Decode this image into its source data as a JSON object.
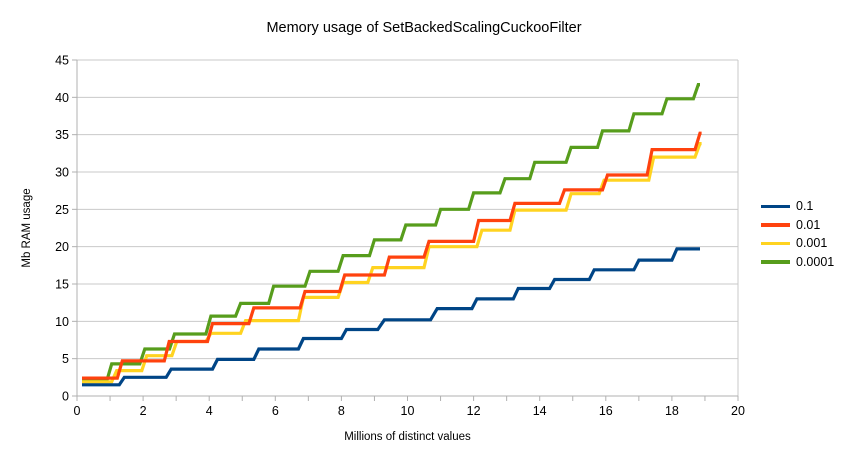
{
  "chart_data": {
    "type": "line",
    "subtype": "step-staircase",
    "title": "Memory usage of SetBackedScalingCuckooFilter",
    "xlabel": "Millions of distinct values",
    "ylabel": "Mb RAM usage",
    "xlim": [
      0,
      20
    ],
    "ylim": [
      0,
      45
    ],
    "xticks_labeled": [
      0,
      2,
      4,
      6,
      8,
      10,
      12,
      14,
      16,
      18,
      20
    ],
    "xticks_minor_every": 1,
    "yticks": [
      0,
      5,
      10,
      15,
      20,
      25,
      30,
      35,
      40,
      45
    ],
    "grid": "horizontal",
    "grid_color": "#c9c9c9",
    "axis_color": "#b0b0b0",
    "legend_position": "right",
    "legend": [
      {
        "label": "0.1",
        "color": "#004586"
      },
      {
        "label": "0.01",
        "color": "#ff420e"
      },
      {
        "label": "0.001",
        "color": "#ffd320"
      },
      {
        "label": "0.0001",
        "color": "#579d1c"
      }
    ],
    "draw_order": [
      3,
      2,
      0,
      1
    ],
    "line_width": 3.2,
    "series": [
      {
        "name": "0.1",
        "color": "#004586",
        "points": [
          [
            0.15,
            1.5
          ],
          [
            1.28,
            1.5
          ],
          [
            1.43,
            2.5
          ],
          [
            2.7,
            2.5
          ],
          [
            2.85,
            3.6
          ],
          [
            4.1,
            3.6
          ],
          [
            4.25,
            4.9
          ],
          [
            5.35,
            4.9
          ],
          [
            5.5,
            6.3
          ],
          [
            6.7,
            6.3
          ],
          [
            6.85,
            7.7
          ],
          [
            8.0,
            7.7
          ],
          [
            8.15,
            8.9
          ],
          [
            9.1,
            8.9
          ],
          [
            9.3,
            10.2
          ],
          [
            10.7,
            10.2
          ],
          [
            10.9,
            11.7
          ],
          [
            11.95,
            11.7
          ],
          [
            12.1,
            13.0
          ],
          [
            13.2,
            13.0
          ],
          [
            13.35,
            14.4
          ],
          [
            14.3,
            14.4
          ],
          [
            14.45,
            15.6
          ],
          [
            15.5,
            15.6
          ],
          [
            15.65,
            16.9
          ],
          [
            16.85,
            16.9
          ],
          [
            17.0,
            18.2
          ],
          [
            18.0,
            18.2
          ],
          [
            18.15,
            19.7
          ],
          [
            18.85,
            19.7
          ]
        ]
      },
      {
        "name": "0.01",
        "color": "#ff420e",
        "points": [
          [
            0.15,
            2.4
          ],
          [
            1.22,
            2.4
          ],
          [
            1.37,
            4.7
          ],
          [
            2.64,
            4.7
          ],
          [
            2.79,
            7.3
          ],
          [
            3.95,
            7.3
          ],
          [
            4.1,
            9.7
          ],
          [
            5.2,
            9.7
          ],
          [
            5.35,
            11.8
          ],
          [
            6.75,
            11.8
          ],
          [
            6.9,
            14.0
          ],
          [
            7.95,
            14.0
          ],
          [
            8.1,
            16.2
          ],
          [
            9.3,
            16.2
          ],
          [
            9.45,
            18.6
          ],
          [
            10.5,
            18.6
          ],
          [
            10.65,
            20.7
          ],
          [
            12.0,
            20.7
          ],
          [
            12.15,
            23.5
          ],
          [
            13.1,
            23.5
          ],
          [
            13.25,
            25.8
          ],
          [
            14.6,
            25.8
          ],
          [
            14.75,
            27.6
          ],
          [
            15.9,
            27.6
          ],
          [
            16.05,
            29.6
          ],
          [
            17.25,
            29.6
          ],
          [
            17.4,
            33.0
          ],
          [
            18.7,
            33.0
          ],
          [
            18.85,
            35.2
          ],
          [
            18.9,
            35.2
          ]
        ]
      },
      {
        "name": "0.001",
        "color": "#ffd320",
        "points": [
          [
            0.15,
            1.9
          ],
          [
            1.05,
            1.9
          ],
          [
            1.2,
            3.4
          ],
          [
            1.96,
            3.4
          ],
          [
            2.11,
            5.4
          ],
          [
            2.87,
            5.4
          ],
          [
            3.02,
            7.3
          ],
          [
            3.9,
            7.3
          ],
          [
            4.05,
            8.4
          ],
          [
            4.95,
            8.4
          ],
          [
            5.1,
            10.1
          ],
          [
            6.7,
            10.1
          ],
          [
            6.85,
            13.2
          ],
          [
            7.9,
            13.2
          ],
          [
            8.05,
            15.2
          ],
          [
            8.8,
            15.2
          ],
          [
            8.95,
            17.2
          ],
          [
            10.5,
            17.2
          ],
          [
            10.65,
            20.0
          ],
          [
            12.1,
            20.0
          ],
          [
            12.25,
            22.2
          ],
          [
            13.1,
            22.2
          ],
          [
            13.25,
            24.9
          ],
          [
            14.8,
            24.9
          ],
          [
            14.95,
            27.1
          ],
          [
            15.8,
            27.1
          ],
          [
            15.95,
            28.9
          ],
          [
            17.3,
            28.9
          ],
          [
            17.45,
            32.0
          ],
          [
            18.7,
            32.0
          ],
          [
            18.85,
            33.8
          ],
          [
            18.9,
            33.8
          ]
        ]
      },
      {
        "name": "0.0001",
        "color": "#579d1c",
        "points": [
          [
            0.15,
            2.0
          ],
          [
            0.9,
            2.0
          ],
          [
            1.05,
            4.3
          ],
          [
            1.9,
            4.3
          ],
          [
            2.05,
            6.3
          ],
          [
            2.8,
            6.3
          ],
          [
            2.95,
            8.3
          ],
          [
            3.9,
            8.3
          ],
          [
            4.05,
            10.7
          ],
          [
            4.8,
            10.7
          ],
          [
            4.95,
            12.4
          ],
          [
            5.8,
            12.4
          ],
          [
            5.95,
            14.7
          ],
          [
            6.9,
            14.7
          ],
          [
            7.05,
            16.7
          ],
          [
            7.9,
            16.7
          ],
          [
            8.05,
            18.8
          ],
          [
            8.85,
            18.8
          ],
          [
            9.0,
            20.9
          ],
          [
            9.8,
            20.9
          ],
          [
            9.95,
            22.9
          ],
          [
            10.85,
            22.9
          ],
          [
            11.0,
            25.0
          ],
          [
            11.85,
            25.0
          ],
          [
            12.0,
            27.2
          ],
          [
            12.8,
            27.2
          ],
          [
            12.95,
            29.1
          ],
          [
            13.7,
            29.1
          ],
          [
            13.85,
            31.3
          ],
          [
            14.8,
            31.3
          ],
          [
            14.95,
            33.3
          ],
          [
            15.75,
            33.3
          ],
          [
            15.9,
            35.5
          ],
          [
            16.7,
            35.5
          ],
          [
            16.85,
            37.8
          ],
          [
            17.7,
            37.8
          ],
          [
            17.85,
            39.8
          ],
          [
            18.65,
            39.8
          ],
          [
            18.8,
            41.7
          ],
          [
            18.85,
            41.7
          ]
        ]
      }
    ]
  }
}
